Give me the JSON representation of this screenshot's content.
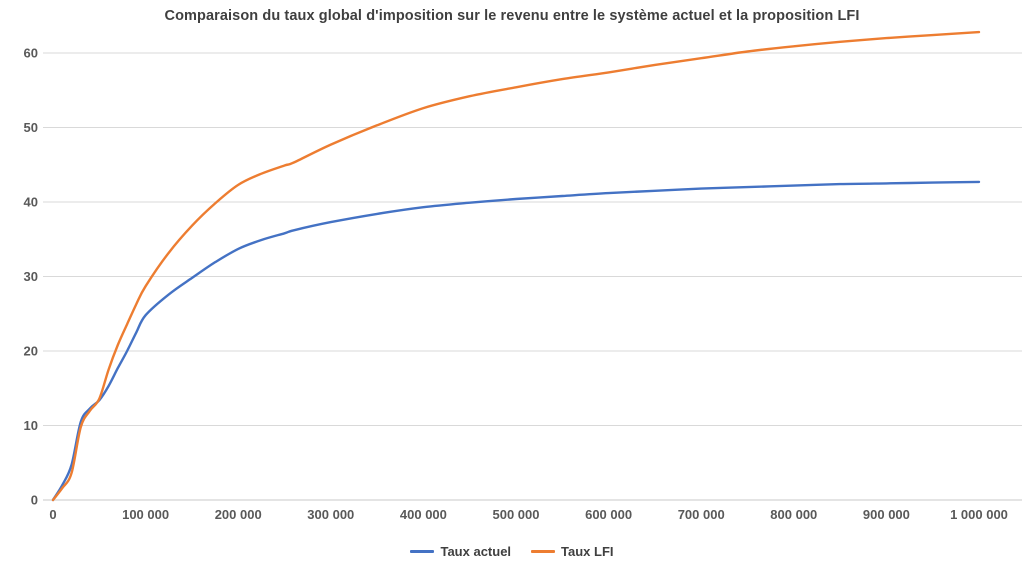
{
  "chart_data": {
    "type": "line",
    "title": "Comparaison du taux global d'imposition sur le revenu entre le système actuel et la proposition LFI",
    "xlabel": "",
    "ylabel": "",
    "xlim": [
      0,
      1000000
    ],
    "ylim": [
      0,
      60
    ],
    "grid": true,
    "legend_position": "bottom-center",
    "x": [
      0,
      10000,
      20000,
      30000,
      40000,
      50000,
      60000,
      70000,
      80000,
      90000,
      100000,
      125000,
      150000,
      175000,
      200000,
      225000,
      250000,
      260000,
      300000,
      350000,
      400000,
      450000,
      500000,
      550000,
      600000,
      650000,
      700000,
      750000,
      800000,
      850000,
      900000,
      950000,
      1000000
    ],
    "series": [
      {
        "name": "Taux actuel",
        "color": "#4472C4",
        "values": [
          0,
          2.0,
          4.7,
          10.5,
          12.3,
          13.4,
          15.3,
          17.7,
          20.0,
          22.5,
          24.8,
          27.6,
          29.8,
          31.9,
          33.7,
          34.9,
          35.8,
          36.2,
          37.3,
          38.4,
          39.3,
          39.9,
          40.4,
          40.8,
          41.2,
          41.5,
          41.8,
          42.0,
          42.2,
          42.4,
          42.5,
          42.6,
          42.7
        ]
      },
      {
        "name": "Taux LFI",
        "color": "#ED7D31",
        "values": [
          0,
          1.6,
          3.6,
          9.8,
          12.0,
          13.6,
          17.5,
          20.8,
          23.6,
          26.3,
          28.7,
          33.2,
          36.8,
          39.8,
          42.3,
          43.8,
          44.9,
          45.3,
          47.7,
          50.3,
          52.6,
          54.2,
          55.4,
          56.5,
          57.4,
          58.4,
          59.3,
          60.2,
          60.9,
          61.5,
          62.0,
          62.4,
          62.8
        ]
      }
    ],
    "yticks": [
      {
        "value": 0,
        "label": "0"
      },
      {
        "value": 10,
        "label": "10"
      },
      {
        "value": 20,
        "label": "20"
      },
      {
        "value": 30,
        "label": "30"
      },
      {
        "value": 40,
        "label": "40"
      },
      {
        "value": 50,
        "label": "50"
      },
      {
        "value": 60,
        "label": "60"
      }
    ],
    "xticks": [
      {
        "value": 0,
        "label": "0"
      },
      {
        "value": 100000,
        "label": "100 000"
      },
      {
        "value": 200000,
        "label": "200 000"
      },
      {
        "value": 300000,
        "label": "300 000"
      },
      {
        "value": 400000,
        "label": "400 000"
      },
      {
        "value": 500000,
        "label": "500 000"
      },
      {
        "value": 600000,
        "label": "600 000"
      },
      {
        "value": 700000,
        "label": "700 000"
      },
      {
        "value": 800000,
        "label": "800 000"
      },
      {
        "value": 900000,
        "label": "900 000"
      },
      {
        "value": 1000000,
        "label": "1 000 000"
      }
    ]
  },
  "styles": {
    "background": "#FFFFFF",
    "title_color": "#3F3F3F",
    "axis_label_color": "#595959",
    "gridline_color": "#D9D9D9",
    "axis_line_color": "#C8C8C8",
    "accent_blue": "#4472C4",
    "accent_orange": "#ED7D31"
  }
}
